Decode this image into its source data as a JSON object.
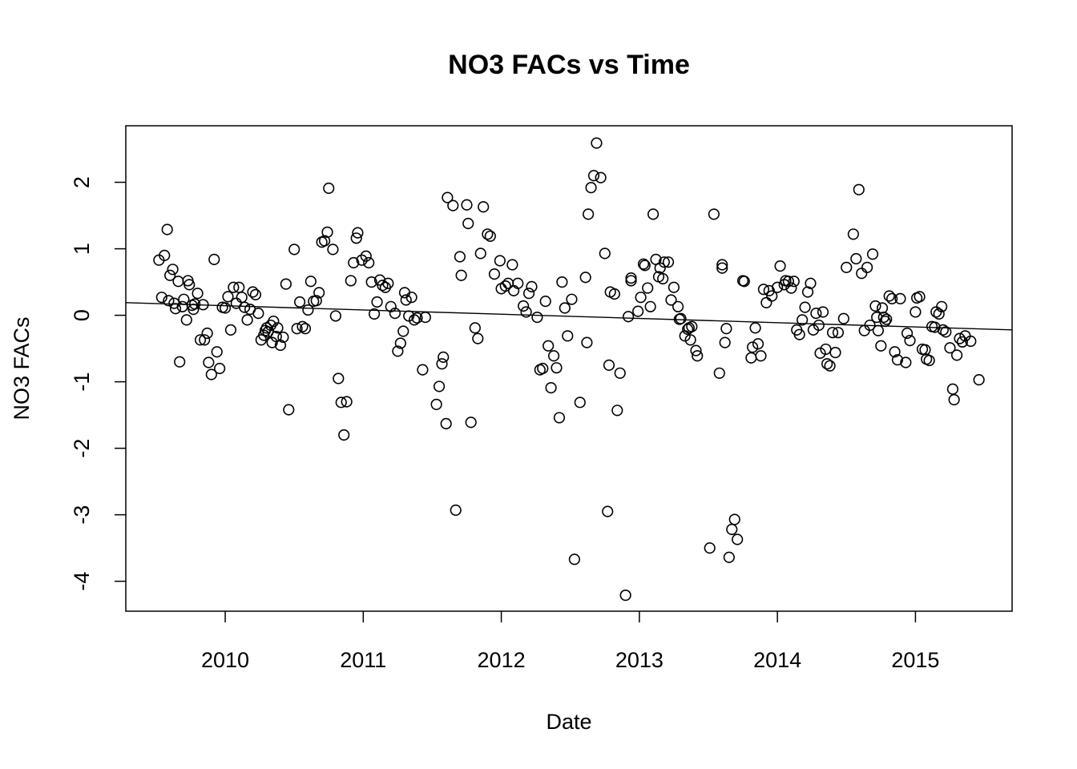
{
  "chart_data": {
    "type": "scatter",
    "title": "NO3 FACs vs Time",
    "xlabel": "Date",
    "ylabel": "NO3 FACs",
    "xlim": [
      2009.28,
      2015.7
    ],
    "ylim": [
      -4.45,
      2.85
    ],
    "xticks": [
      2010,
      2011,
      2012,
      2013,
      2014,
      2015
    ],
    "xtick_labels": [
      "2010",
      "2011",
      "2012",
      "2013",
      "2014",
      "2015"
    ],
    "yticks": [
      -4,
      -3,
      -2,
      -1,
      0,
      1,
      2
    ],
    "ytick_labels": [
      "-4",
      "-3",
      "-2",
      "-1",
      "0",
      "1",
      "2"
    ],
    "grid": false,
    "legend": "none",
    "trend_line": {
      "x": [
        2009.28,
        2015.7
      ],
      "y": [
        0.19,
        -0.22
      ]
    },
    "points": [
      [
        2009.52,
        0.83
      ],
      [
        2009.54,
        0.27
      ],
      [
        2009.56,
        0.9
      ],
      [
        2009.58,
        1.29
      ],
      [
        2009.59,
        0.22
      ],
      [
        2009.6,
        0.6
      ],
      [
        2009.62,
        0.69
      ],
      [
        2009.63,
        0.18
      ],
      [
        2009.64,
        0.1
      ],
      [
        2009.66,
        0.51
      ],
      [
        2009.67,
        -0.7
      ],
      [
        2009.69,
        0.13
      ],
      [
        2009.7,
        0.24
      ],
      [
        2009.72,
        -0.07
      ],
      [
        2009.73,
        0.52
      ],
      [
        2009.74,
        0.46
      ],
      [
        2009.76,
        0.15
      ],
      [
        2009.77,
        0.09
      ],
      [
        2009.78,
        0.17
      ],
      [
        2009.8,
        0.33
      ],
      [
        2009.82,
        -0.37
      ],
      [
        2009.84,
        0.16
      ],
      [
        2009.85,
        -0.37
      ],
      [
        2009.87,
        -0.27
      ],
      [
        2009.88,
        -0.71
      ],
      [
        2009.9,
        -0.89
      ],
      [
        2009.92,
        0.84
      ],
      [
        2009.94,
        -0.55
      ],
      [
        2009.96,
        -0.8
      ],
      [
        2009.98,
        0.12
      ],
      [
        2010.0,
        0.11
      ],
      [
        2010.02,
        0.28
      ],
      [
        2010.04,
        -0.22
      ],
      [
        2010.06,
        0.42
      ],
      [
        2010.08,
        0.18
      ],
      [
        2010.1,
        0.42
      ],
      [
        2010.12,
        0.27
      ],
      [
        2010.14,
        0.12
      ],
      [
        2010.16,
        -0.07
      ],
      [
        2010.18,
        0.09
      ],
      [
        2010.2,
        0.35
      ],
      [
        2010.22,
        0.31
      ],
      [
        2010.24,
        0.03
      ],
      [
        2010.26,
        -0.37
      ],
      [
        2010.28,
        -0.3
      ],
      [
        2010.29,
        -0.23
      ],
      [
        2010.3,
        -0.19
      ],
      [
        2010.31,
        -0.25
      ],
      [
        2010.33,
        -0.15
      ],
      [
        2010.34,
        -0.41
      ],
      [
        2010.35,
        -0.09
      ],
      [
        2010.37,
        -0.32
      ],
      [
        2010.38,
        -0.19
      ],
      [
        2010.4,
        -0.45
      ],
      [
        2010.42,
        -0.33
      ],
      [
        2010.44,
        0.47
      ],
      [
        2010.46,
        -1.42
      ],
      [
        2010.5,
        0.99
      ],
      [
        2010.52,
        -0.2
      ],
      [
        2010.54,
        0.2
      ],
      [
        2010.56,
        -0.17
      ],
      [
        2010.58,
        -0.2
      ],
      [
        2010.6,
        0.08
      ],
      [
        2010.62,
        0.51
      ],
      [
        2010.64,
        0.21
      ],
      [
        2010.66,
        0.22
      ],
      [
        2010.68,
        0.34
      ],
      [
        2010.7,
        1.1
      ],
      [
        2010.72,
        1.12
      ],
      [
        2010.74,
        1.25
      ],
      [
        2010.75,
        1.91
      ],
      [
        2010.78,
        0.99
      ],
      [
        2010.8,
        -0.01
      ],
      [
        2010.82,
        -0.95
      ],
      [
        2010.84,
        -1.31
      ],
      [
        2010.86,
        -1.8
      ],
      [
        2010.88,
        -1.3
      ],
      [
        2010.91,
        0.52
      ],
      [
        2010.93,
        0.79
      ],
      [
        2010.95,
        1.16
      ],
      [
        2010.96,
        1.24
      ],
      [
        2010.99,
        0.83
      ],
      [
        2011.02,
        0.89
      ],
      [
        2011.04,
        0.79
      ],
      [
        2011.06,
        0.5
      ],
      [
        2011.08,
        0.02
      ],
      [
        2011.1,
        0.2
      ],
      [
        2011.12,
        0.53
      ],
      [
        2011.14,
        0.45
      ],
      [
        2011.16,
        0.42
      ],
      [
        2011.18,
        0.48
      ],
      [
        2011.2,
        0.13
      ],
      [
        2011.23,
        0.03
      ],
      [
        2011.25,
        -0.54
      ],
      [
        2011.27,
        -0.42
      ],
      [
        2011.29,
        -0.24
      ],
      [
        2011.3,
        0.34
      ],
      [
        2011.31,
        0.23
      ],
      [
        2011.33,
        -0.01
      ],
      [
        2011.35,
        0.27
      ],
      [
        2011.37,
        -0.07
      ],
      [
        2011.39,
        -0.04
      ],
      [
        2011.43,
        -0.82
      ],
      [
        2011.45,
        -0.03
      ],
      [
        2011.53,
        -1.34
      ],
      [
        2011.55,
        -1.07
      ],
      [
        2011.57,
        -0.73
      ],
      [
        2011.58,
        -0.63
      ],
      [
        2011.6,
        -1.63
      ],
      [
        2011.61,
        1.77
      ],
      [
        2011.65,
        1.65
      ],
      [
        2011.67,
        -2.93
      ],
      [
        2011.7,
        0.88
      ],
      [
        2011.71,
        0.6
      ],
      [
        2011.75,
        1.66
      ],
      [
        2011.76,
        1.38
      ],
      [
        2011.78,
        -1.61
      ],
      [
        2011.81,
        -0.19
      ],
      [
        2011.83,
        -0.35
      ],
      [
        2011.85,
        0.93
      ],
      [
        2011.87,
        1.63
      ],
      [
        2011.9,
        1.22
      ],
      [
        2011.92,
        1.19
      ],
      [
        2011.95,
        0.62
      ],
      [
        2011.99,
        0.82
      ],
      [
        2012.0,
        0.4
      ],
      [
        2012.03,
        0.44
      ],
      [
        2012.05,
        0.48
      ],
      [
        2012.08,
        0.76
      ],
      [
        2012.09,
        0.37
      ],
      [
        2012.12,
        0.48
      ],
      [
        2012.16,
        0.14
      ],
      [
        2012.18,
        0.05
      ],
      [
        2012.2,
        0.33
      ],
      [
        2012.22,
        0.43
      ],
      [
        2012.26,
        -0.03
      ],
      [
        2012.28,
        -0.82
      ],
      [
        2012.3,
        -0.8
      ],
      [
        2012.32,
        0.21
      ],
      [
        2012.34,
        -0.46
      ],
      [
        2012.36,
        -1.09
      ],
      [
        2012.38,
        -0.61
      ],
      [
        2012.4,
        -0.79
      ],
      [
        2012.42,
        -1.54
      ],
      [
        2012.44,
        0.5
      ],
      [
        2012.46,
        0.11
      ],
      [
        2012.48,
        -0.31
      ],
      [
        2012.51,
        0.24
      ],
      [
        2012.53,
        -3.67
      ],
      [
        2012.57,
        -1.31
      ],
      [
        2012.61,
        0.57
      ],
      [
        2012.62,
        -0.41
      ],
      [
        2012.63,
        1.52
      ],
      [
        2012.65,
        1.92
      ],
      [
        2012.67,
        2.1
      ],
      [
        2012.69,
        2.59
      ],
      [
        2012.72,
        2.07
      ],
      [
        2012.75,
        0.93
      ],
      [
        2012.77,
        -2.95
      ],
      [
        2012.78,
        -0.75
      ],
      [
        2012.79,
        0.35
      ],
      [
        2012.82,
        0.32
      ],
      [
        2012.84,
        -1.43
      ],
      [
        2012.86,
        -0.87
      ],
      [
        2012.9,
        -4.21
      ],
      [
        2012.92,
        -0.02
      ],
      [
        2012.94,
        0.56
      ],
      [
        2012.94,
        0.52
      ],
      [
        2012.99,
        0.06
      ],
      [
        2013.01,
        0.27
      ],
      [
        2013.03,
        0.77
      ],
      [
        2013.04,
        0.75
      ],
      [
        2013.06,
        0.41
      ],
      [
        2013.08,
        0.13
      ],
      [
        2013.1,
        1.52
      ],
      [
        2013.12,
        0.84
      ],
      [
        2013.14,
        0.58
      ],
      [
        2013.15,
        0.71
      ],
      [
        2013.17,
        0.55
      ],
      [
        2013.18,
        0.8
      ],
      [
        2013.21,
        0.8
      ],
      [
        2013.23,
        0.23
      ],
      [
        2013.25,
        0.42
      ],
      [
        2013.28,
        0.13
      ],
      [
        2013.29,
        -0.06
      ],
      [
        2013.3,
        -0.05
      ],
      [
        2013.33,
        -0.31
      ],
      [
        2013.35,
        -0.21
      ],
      [
        2013.36,
        -0.19
      ],
      [
        2013.37,
        -0.37
      ],
      [
        2013.38,
        -0.17
      ],
      [
        2013.41,
        -0.53
      ],
      [
        2013.42,
        -0.61
      ],
      [
        2013.51,
        -3.5
      ],
      [
        2013.54,
        1.52
      ],
      [
        2013.58,
        -0.87
      ],
      [
        2013.6,
        0.76
      ],
      [
        2013.6,
        0.71
      ],
      [
        2013.62,
        -0.41
      ],
      [
        2013.63,
        -0.2
      ],
      [
        2013.65,
        -3.64
      ],
      [
        2013.67,
        -3.22
      ],
      [
        2013.69,
        -3.07
      ],
      [
        2013.71,
        -3.37
      ],
      [
        2013.75,
        0.52
      ],
      [
        2013.76,
        0.51
      ],
      [
        2013.81,
        -0.64
      ],
      [
        2013.82,
        -0.48
      ],
      [
        2013.84,
        -0.19
      ],
      [
        2013.86,
        -0.43
      ],
      [
        2013.88,
        -0.61
      ],
      [
        2013.9,
        0.39
      ],
      [
        2013.92,
        0.19
      ],
      [
        2013.94,
        0.37
      ],
      [
        2013.96,
        0.29
      ],
      [
        2014.0,
        0.42
      ],
      [
        2014.02,
        0.74
      ],
      [
        2014.05,
        0.46
      ],
      [
        2014.06,
        0.52
      ],
      [
        2014.08,
        0.51
      ],
      [
        2014.1,
        0.41
      ],
      [
        2014.12,
        0.51
      ],
      [
        2014.14,
        -0.22
      ],
      [
        2014.16,
        -0.29
      ],
      [
        2014.18,
        -0.07
      ],
      [
        2014.2,
        0.12
      ],
      [
        2014.22,
        0.35
      ],
      [
        2014.24,
        0.48
      ],
      [
        2014.26,
        -0.22
      ],
      [
        2014.28,
        0.03
      ],
      [
        2014.3,
        -0.15
      ],
      [
        2014.31,
        -0.57
      ],
      [
        2014.33,
        0.05
      ],
      [
        2014.35,
        -0.51
      ],
      [
        2014.36,
        -0.73
      ],
      [
        2014.38,
        -0.76
      ],
      [
        2014.4,
        -0.26
      ],
      [
        2014.42,
        -0.56
      ],
      [
        2014.44,
        -0.26
      ],
      [
        2014.48,
        -0.05
      ],
      [
        2014.5,
        0.72
      ],
      [
        2014.55,
        1.22
      ],
      [
        2014.57,
        0.85
      ],
      [
        2014.59,
        1.89
      ],
      [
        2014.61,
        0.63
      ],
      [
        2014.63,
        -0.23
      ],
      [
        2014.65,
        0.72
      ],
      [
        2014.67,
        -0.15
      ],
      [
        2014.69,
        0.92
      ],
      [
        2014.71,
        0.14
      ],
      [
        2014.72,
        -0.03
      ],
      [
        2014.73,
        -0.23
      ],
      [
        2014.75,
        -0.46
      ],
      [
        2014.76,
        0.11
      ],
      [
        2014.77,
        -0.03
      ],
      [
        2014.78,
        -0.09
      ],
      [
        2014.79,
        -0.06
      ],
      [
        2014.81,
        0.29
      ],
      [
        2014.83,
        0.25
      ],
      [
        2014.85,
        -0.55
      ],
      [
        2014.87,
        -0.67
      ],
      [
        2014.89,
        0.25
      ],
      [
        2014.93,
        -0.71
      ],
      [
        2014.94,
        -0.27
      ],
      [
        2014.96,
        -0.38
      ],
      [
        2015.0,
        0.05
      ],
      [
        2015.01,
        0.26
      ],
      [
        2015.03,
        0.28
      ],
      [
        2015.05,
        -0.51
      ],
      [
        2015.07,
        -0.52
      ],
      [
        2015.08,
        -0.66
      ],
      [
        2015.1,
        -0.68
      ],
      [
        2015.12,
        -0.17
      ],
      [
        2015.14,
        -0.18
      ],
      [
        2015.15,
        0.05
      ],
      [
        2015.17,
        0.02
      ],
      [
        2015.19,
        0.13
      ],
      [
        2015.2,
        -0.22
      ],
      [
        2015.22,
        -0.25
      ],
      [
        2015.25,
        -0.49
      ],
      [
        2015.27,
        -1.11
      ],
      [
        2015.28,
        -1.27
      ],
      [
        2015.3,
        -0.6
      ],
      [
        2015.32,
        -0.35
      ],
      [
        2015.34,
        -0.4
      ],
      [
        2015.36,
        -0.31
      ],
      [
        2015.4,
        -0.39
      ],
      [
        2015.46,
        -0.97
      ]
    ]
  }
}
